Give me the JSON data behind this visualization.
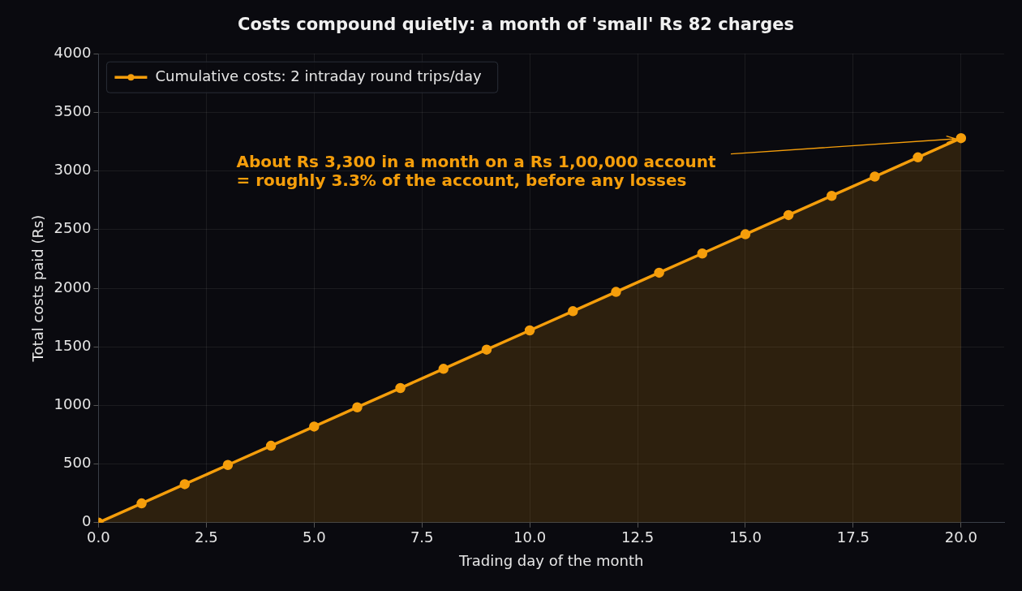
{
  "chart_data": {
    "type": "area",
    "title": "Costs compound quietly: a month of 'small' Rs 82 charges",
    "xlabel": "Trading day of the month",
    "ylabel": "Total costs paid (Rs)",
    "x": [
      0,
      1,
      2,
      3,
      4,
      5,
      6,
      7,
      8,
      9,
      10,
      11,
      12,
      13,
      14,
      15,
      16,
      17,
      18,
      19,
      20
    ],
    "series": [
      {
        "name": "Cumulative costs: 2 intraday round trips/day",
        "color": "#f59e0b",
        "values": [
          0,
          164,
          328,
          492,
          656,
          820,
          984,
          1148,
          1312,
          1476,
          1640,
          1804,
          1968,
          2132,
          2296,
          2460,
          2624,
          2788,
          2952,
          3116,
          3280
        ]
      }
    ],
    "xlim": [
      0,
      21
    ],
    "xticks": [
      {
        "value": 0,
        "label": "0.0"
      },
      {
        "value": 2.5,
        "label": "2.5"
      },
      {
        "value": 5,
        "label": "5.0"
      },
      {
        "value": 7.5,
        "label": "7.5"
      },
      {
        "value": 10,
        "label": "10.0"
      },
      {
        "value": 12.5,
        "label": "12.5"
      },
      {
        "value": 15,
        "label": "15.0"
      },
      {
        "value": 17.5,
        "label": "17.5"
      },
      {
        "value": 20,
        "label": "20.0"
      }
    ],
    "ylim": [
      0,
      4000
    ],
    "yticks": [
      0,
      500,
      1000,
      1500,
      2000,
      2500,
      3000,
      3500,
      4000
    ],
    "annotations": [
      {
        "text": "About Rs 3,300 in a month on a Rs 1,00,000 account\n= roughly 3.3% of the account, before any losses",
        "x": 20,
        "y": 3280
      }
    ],
    "grid": true,
    "legend": "top left",
    "marker": "circle",
    "line_style": "solid"
  }
}
